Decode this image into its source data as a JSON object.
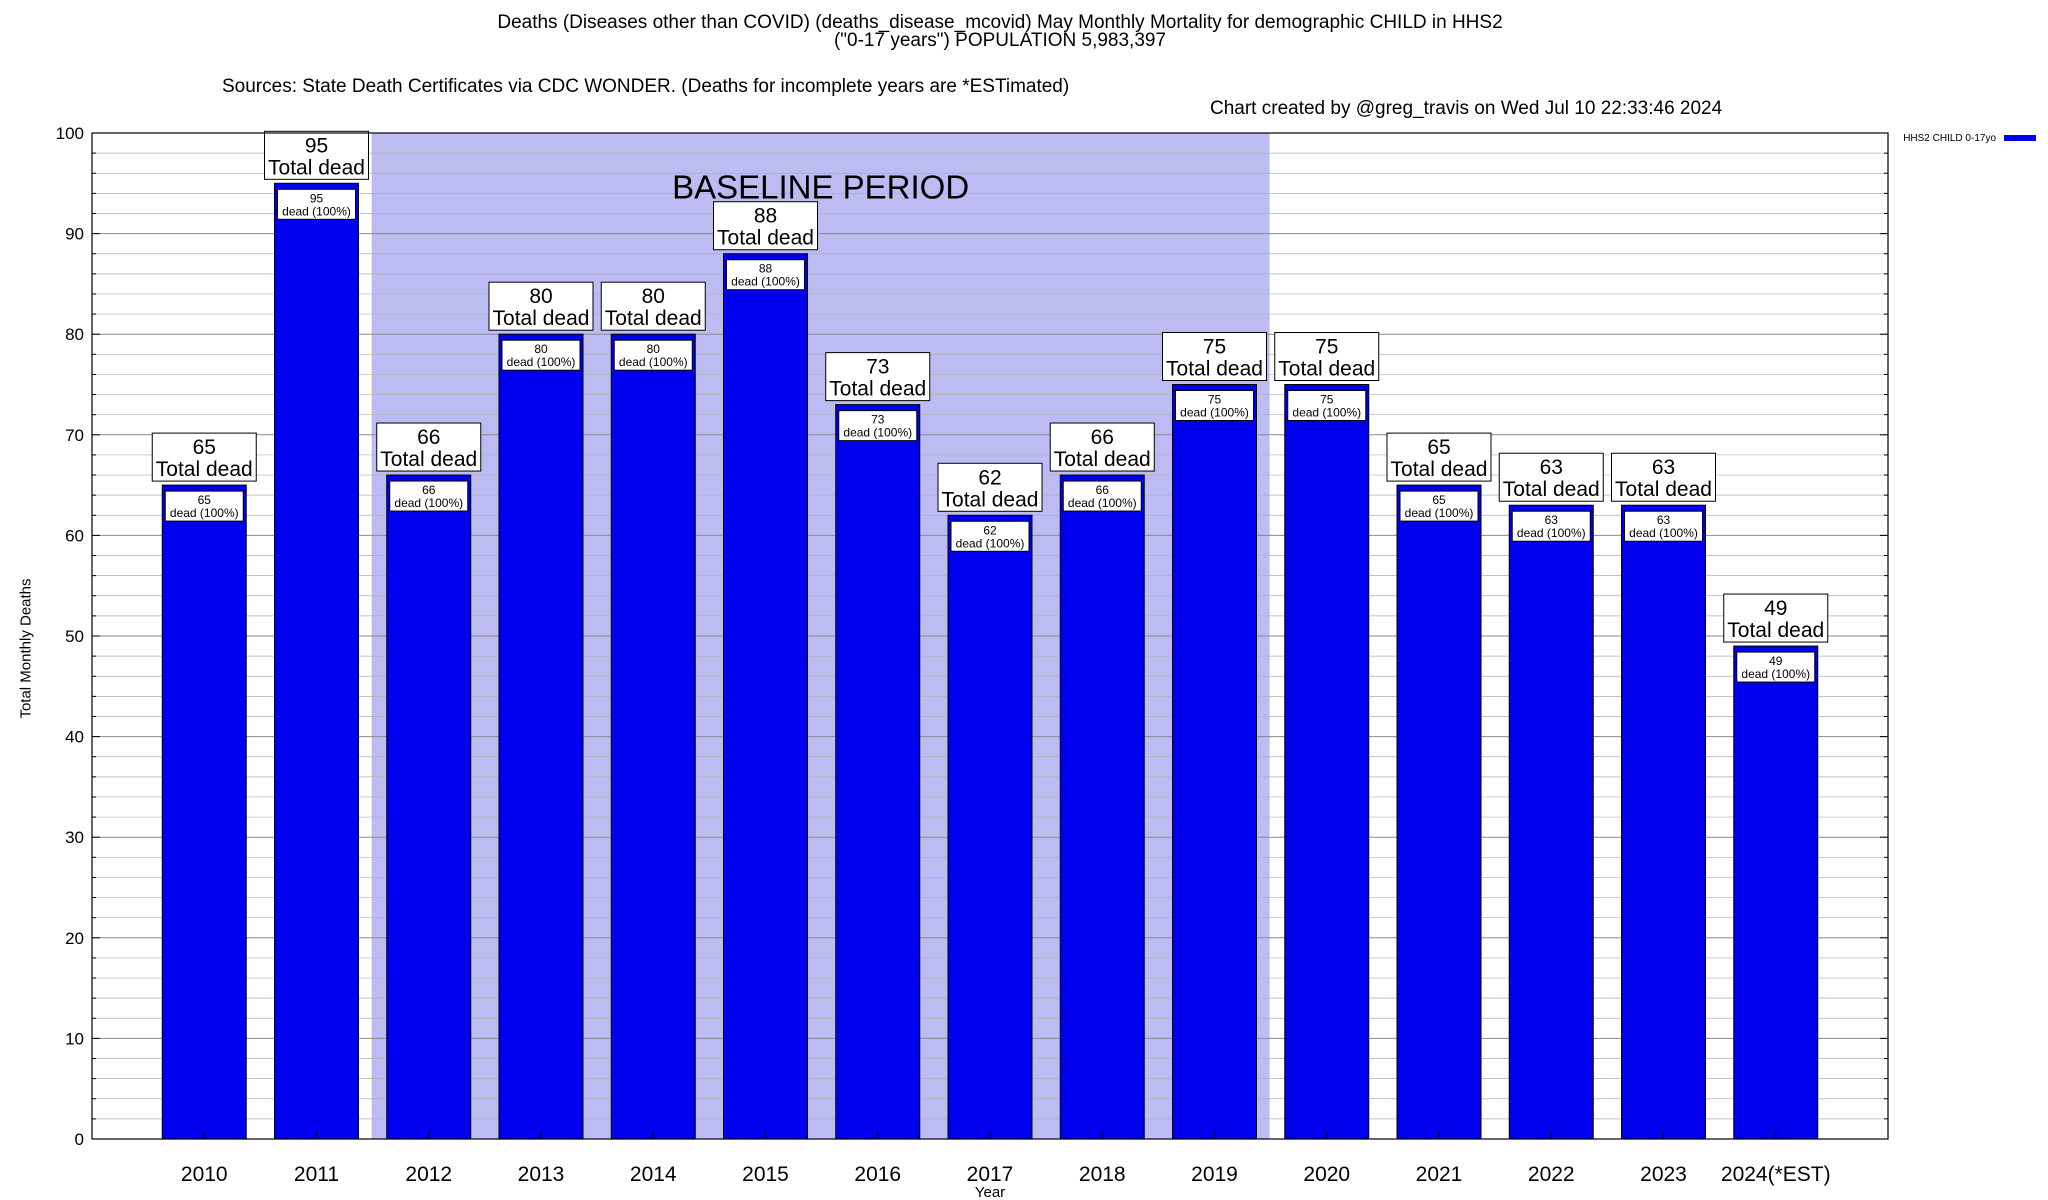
{
  "title": {
    "line1": "Deaths (Diseases other than COVID) (deaths_disease_mcovid) May Monthly Mortality for demographic CHILD in HHS2",
    "line2": "(\"0-17 years\") POPULATION 5,983,397",
    "sources": "Sources: State Death Certificates via CDC WONDER. (Deaths for incomplete years are *ESTimated)",
    "created": "Chart created by @greg_travis on Wed Jul 10 22:33:46 2024"
  },
  "colors": {
    "bar": "#0000ee",
    "baseline_band": "#bcbcf2",
    "grid": "#b0b0b0"
  },
  "chart_data": {
    "type": "bar",
    "title": "Deaths (Diseases other than COVID) (deaths_disease_mcovid) May Monthly Mortality for demographic CHILD in HHS2",
    "xlabel": "Year",
    "ylabel": "Total Monthly Deaths",
    "ylim": [
      0,
      100
    ],
    "yticks": [
      0,
      10,
      20,
      30,
      40,
      50,
      60,
      70,
      80,
      90,
      100
    ],
    "grid": true,
    "legend": {
      "position": "top-right",
      "entries": [
        "HHS2 CHILD 0-17yo"
      ]
    },
    "categories": [
      "2010",
      "2011",
      "2012",
      "2013",
      "2014",
      "2015",
      "2016",
      "2017",
      "2018",
      "2019",
      "2020",
      "2021",
      "2022",
      "2023",
      "2024(*EST)"
    ],
    "series": [
      {
        "name": "HHS2 CHILD 0-17yo",
        "values": [
          65,
          95,
          66,
          80,
          80,
          88,
          73,
          62,
          66,
          75,
          75,
          65,
          63,
          63,
          49
        ]
      }
    ],
    "baseline_period": {
      "label": "BASELINE PERIOD",
      "from": "2012",
      "to": "2019"
    },
    "total_label": "Total dead",
    "inner_label_suffix": "dead (100%)"
  }
}
